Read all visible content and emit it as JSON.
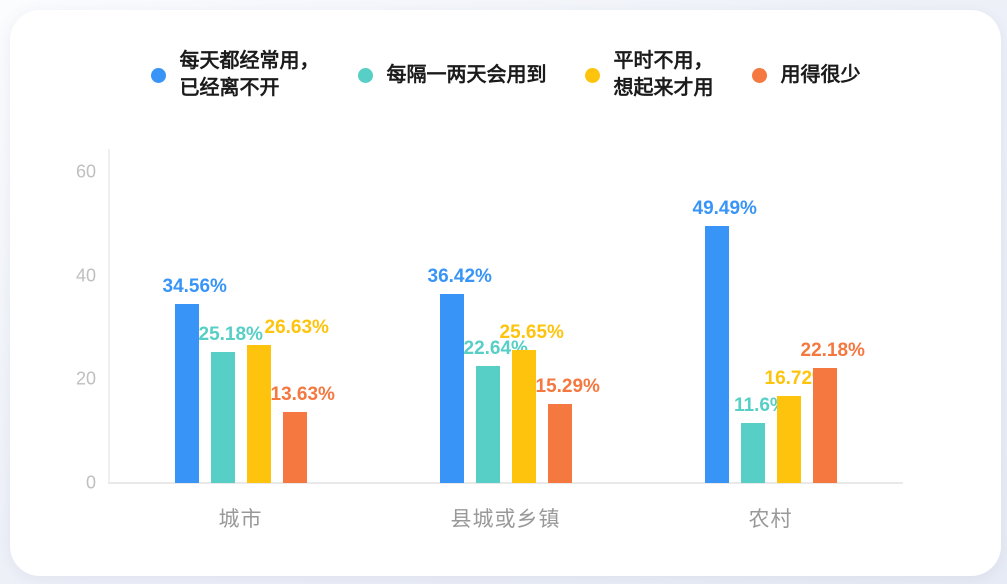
{
  "legend": {
    "items": [
      {
        "label": "每天都经常用，\n已经离不开",
        "color": "#3895f7"
      },
      {
        "label": "每隔一两天会用到",
        "color": "#57cec6"
      },
      {
        "label": "平时不用，\n想起来才用",
        "color": "#fec40d"
      },
      {
        "label": "用得很少",
        "color": "#f4783f"
      }
    ]
  },
  "chart_data": {
    "type": "bar",
    "title": "",
    "categories": [
      "城市",
      "县城或乡镇",
      "农村"
    ],
    "series": [
      {
        "name": "每天都经常用，已经离不开",
        "color": "#3895f7",
        "values": [
          34.56,
          36.42,
          49.49
        ],
        "labels": [
          "34.56%",
          "36.42%",
          "49.49%"
        ]
      },
      {
        "name": "每隔一两天会用到",
        "color": "#57cec6",
        "values": [
          25.18,
          22.64,
          11.6
        ],
        "labels": [
          "25.18%",
          "22.64%",
          "11.6%"
        ]
      },
      {
        "name": "平时不用，想起来才用",
        "color": "#fec40d",
        "values": [
          26.63,
          25.65,
          16.72
        ],
        "labels": [
          "26.63%",
          "25.65%",
          "16.72%"
        ]
      },
      {
        "name": "用得很少",
        "color": "#f4783f",
        "values": [
          13.63,
          15.29,
          22.18
        ],
        "labels": [
          "13.63%",
          "15.29%",
          "22.18%"
        ]
      }
    ],
    "yticks": [
      "0",
      "20",
      "40",
      "60"
    ],
    "ytick_values": [
      0,
      20,
      40,
      60
    ],
    "ylim": [
      0,
      60
    ],
    "xlabel": "",
    "ylabel": "",
    "grid": false,
    "legend_position": "top",
    "value_unit": "%"
  },
  "colors": {
    "page_bg": "#edf0f7",
    "card_bg": "#ffffff",
    "axis_line": "#e9e9e9",
    "tick_label": "#bfbfbf",
    "category_label": "#999999",
    "legend_text": "#1b1b1b"
  }
}
